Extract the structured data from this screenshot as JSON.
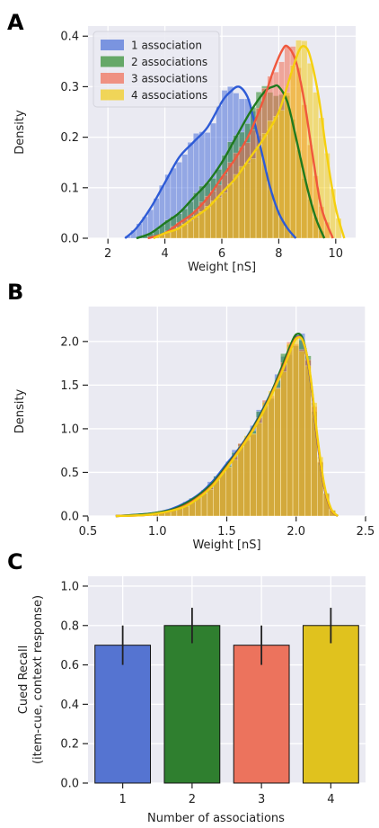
{
  "colors": {
    "plot_bg": "#eaeaf2",
    "grid": "#ffffff",
    "series": [
      "#4a6fd8",
      "#2e8b2e",
      "#f16b52",
      "#f2cc17"
    ],
    "curves": [
      "#2e5bd6",
      "#1f7a1f",
      "#f0583d",
      "#f5d00f"
    ],
    "bars": [
      "#5574d1",
      "#2f7f2f",
      "#ec735d",
      "#e0c21e"
    ]
  },
  "chart_data": [
    {
      "panel": "A",
      "type": "histogram",
      "xlabel": "Weight [nS]",
      "ylabel": "Density",
      "xlim": [
        1.3,
        10.7
      ],
      "ylim": [
        0,
        0.42
      ],
      "xticks": [
        2,
        4,
        6,
        8,
        10
      ],
      "xtick_labels": [
        "2",
        "4",
        "6",
        "8",
        "10"
      ],
      "yticks": [
        0,
        0.1,
        0.2,
        0.3,
        0.4
      ],
      "ytick_labels": [
        "0.0",
        "0.1",
        "0.2",
        "0.3",
        "0.4"
      ],
      "legend": [
        "1 association",
        "2 associations",
        "3 associations",
        "4 associations"
      ],
      "legend_position": "upper-left",
      "series": [
        {
          "name": "1 association",
          "kde_x": [
            2.6,
            3.0,
            3.5,
            4.0,
            4.5,
            5.0,
            5.5,
            6.0,
            6.3,
            6.6,
            6.9,
            7.1,
            7.4,
            7.7,
            8.0,
            8.3,
            8.6
          ],
          "kde_y": [
            0.0,
            0.02,
            0.06,
            0.11,
            0.16,
            0.19,
            0.22,
            0.27,
            0.29,
            0.3,
            0.28,
            0.24,
            0.17,
            0.1,
            0.05,
            0.02,
            0.0
          ]
        },
        {
          "name": "2 associations",
          "kde_x": [
            3.0,
            3.5,
            4.0,
            4.5,
            5.0,
            5.5,
            6.0,
            6.5,
            7.0,
            7.5,
            7.8,
            8.0,
            8.3,
            8.6,
            9.0,
            9.3,
            9.6
          ],
          "kde_y": [
            0.0,
            0.01,
            0.03,
            0.05,
            0.08,
            0.11,
            0.15,
            0.2,
            0.25,
            0.29,
            0.3,
            0.3,
            0.27,
            0.2,
            0.1,
            0.04,
            0.0
          ]
        },
        {
          "name": "3 associations",
          "kde_x": [
            3.4,
            4.0,
            4.5,
            5.0,
            5.5,
            6.0,
            6.5,
            7.0,
            7.5,
            7.8,
            8.1,
            8.3,
            8.6,
            8.9,
            9.2,
            9.5,
            9.9
          ],
          "kde_y": [
            0.0,
            0.01,
            0.03,
            0.05,
            0.08,
            0.12,
            0.16,
            0.21,
            0.28,
            0.33,
            0.37,
            0.38,
            0.35,
            0.27,
            0.16,
            0.06,
            0.0
          ]
        },
        {
          "name": "4 associations",
          "kde_x": [
            3.6,
            4.0,
            4.5,
            5.0,
            5.5,
            6.0,
            6.5,
            7.0,
            7.5,
            8.0,
            8.4,
            8.7,
            8.9,
            9.1,
            9.4,
            9.7,
            10.0,
            10.3
          ],
          "kde_y": [
            0.0,
            0.01,
            0.02,
            0.04,
            0.06,
            0.09,
            0.12,
            0.16,
            0.2,
            0.25,
            0.32,
            0.37,
            0.38,
            0.36,
            0.28,
            0.16,
            0.06,
            0.0
          ]
        }
      ]
    },
    {
      "panel": "B",
      "type": "histogram",
      "xlabel": "Weight [nS]",
      "ylabel": "Density",
      "xlim": [
        0.5,
        2.5
      ],
      "ylim": [
        0,
        2.4
      ],
      "xticks": [
        0.5,
        1.0,
        1.5,
        2.0,
        2.5
      ],
      "xtick_labels": [
        "0.5",
        "1.0",
        "1.5",
        "2.0",
        "2.5"
      ],
      "yticks": [
        0,
        0.5,
        1.0,
        1.5,
        2.0
      ],
      "ytick_labels": [
        "0.0",
        "0.5",
        "1.0",
        "1.5",
        "2.0"
      ],
      "series": [
        {
          "name": "1 association",
          "kde_x": [
            0.7,
            0.9,
            1.0,
            1.1,
            1.2,
            1.3,
            1.4,
            1.5,
            1.6,
            1.7,
            1.8,
            1.9,
            1.95,
            2.0,
            2.05,
            2.1,
            2.15,
            2.2,
            2.25,
            2.3
          ],
          "kde_y": [
            0.0,
            0.02,
            0.04,
            0.08,
            0.15,
            0.25,
            0.4,
            0.6,
            0.8,
            1.05,
            1.35,
            1.7,
            1.9,
            2.05,
            2.0,
            1.6,
            0.9,
            0.35,
            0.08,
            0.0
          ]
        },
        {
          "name": "2 associations",
          "kde_x": [
            0.7,
            0.9,
            1.0,
            1.1,
            1.2,
            1.3,
            1.4,
            1.5,
            1.6,
            1.7,
            1.8,
            1.9,
            1.95,
            2.0,
            2.05,
            2.1,
            2.15,
            2.2,
            2.25,
            2.3
          ],
          "kde_y": [
            0.0,
            0.02,
            0.04,
            0.07,
            0.14,
            0.24,
            0.38,
            0.58,
            0.79,
            1.04,
            1.34,
            1.72,
            1.92,
            2.08,
            2.02,
            1.62,
            0.92,
            0.36,
            0.08,
            0.0
          ]
        },
        {
          "name": "3 associations",
          "kde_x": [
            0.7,
            0.9,
            1.0,
            1.1,
            1.2,
            1.3,
            1.4,
            1.5,
            1.6,
            1.7,
            1.8,
            1.9,
            1.95,
            2.0,
            2.05,
            2.1,
            2.15,
            2.2,
            2.25,
            2.3
          ],
          "kde_y": [
            0.0,
            0.01,
            0.03,
            0.06,
            0.12,
            0.22,
            0.36,
            0.56,
            0.78,
            1.02,
            1.32,
            1.68,
            1.88,
            2.04,
            2.0,
            1.62,
            0.92,
            0.36,
            0.08,
            0.0
          ]
        },
        {
          "name": "4 associations",
          "kde_x": [
            0.7,
            0.9,
            1.0,
            1.1,
            1.2,
            1.3,
            1.4,
            1.5,
            1.6,
            1.7,
            1.8,
            1.9,
            1.95,
            2.0,
            2.05,
            2.1,
            2.15,
            2.2,
            2.25,
            2.3
          ],
          "kde_y": [
            0.0,
            0.01,
            0.03,
            0.06,
            0.11,
            0.21,
            0.35,
            0.55,
            0.77,
            1.01,
            1.31,
            1.66,
            1.86,
            2.03,
            2.0,
            1.64,
            0.95,
            0.38,
            0.09,
            0.0
          ]
        }
      ]
    },
    {
      "panel": "C",
      "type": "bar",
      "xlabel": "Number of associations",
      "ylabel_lines": [
        "Cued Recall",
        "(item-cue, context response)"
      ],
      "categories": [
        "1",
        "2",
        "3",
        "4"
      ],
      "values": [
        0.7,
        0.8,
        0.7,
        0.8
      ],
      "errors": [
        0.1,
        0.09,
        0.1,
        0.09
      ],
      "ylim": [
        0,
        1.05
      ],
      "yticks": [
        0,
        0.2,
        0.4,
        0.6,
        0.8,
        1.0
      ],
      "ytick_labels": [
        "0.0",
        "0.2",
        "0.4",
        "0.6",
        "0.8",
        "1.0"
      ]
    }
  ]
}
